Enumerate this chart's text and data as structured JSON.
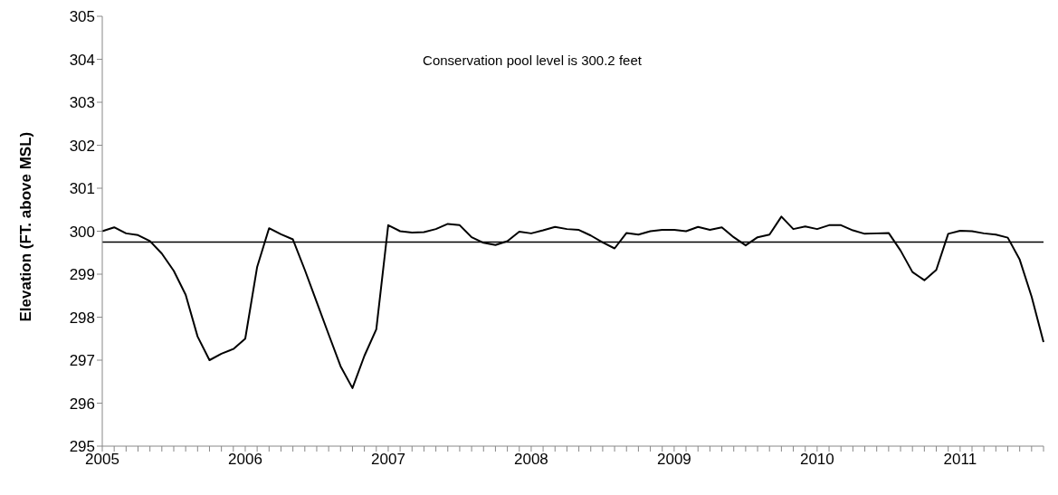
{
  "chart_data": {
    "type": "line",
    "ylabel": "Elevation (FT. above MSL)",
    "categories": [
      "2005",
      null,
      null,
      null,
      null,
      null,
      null,
      null,
      null,
      null,
      null,
      null,
      "2006",
      null,
      null,
      null,
      null,
      null,
      null,
      null,
      null,
      null,
      null,
      null,
      "2007",
      null,
      null,
      null,
      null,
      null,
      null,
      null,
      null,
      null,
      null,
      null,
      "2008",
      null,
      null,
      null,
      null,
      null,
      null,
      null,
      null,
      null,
      null,
      null,
      "2009",
      null,
      null,
      null,
      null,
      null,
      null,
      null,
      null,
      null,
      null,
      null,
      "2010",
      null,
      null,
      null,
      null,
      null,
      null,
      null,
      null,
      null,
      null,
      null,
      "2011",
      null,
      null,
      null,
      null,
      null,
      null,
      null
    ],
    "series": [
      {
        "color": "#000000",
        "values": [
          300.0,
          300.09,
          299.95,
          299.91,
          299.77,
          299.48,
          299.08,
          298.52,
          297.55,
          297.0,
          297.15,
          297.26,
          297.5,
          299.17,
          300.07,
          299.93,
          299.81,
          299.1,
          298.35,
          297.6,
          296.86,
          296.35,
          297.1,
          297.72,
          300.14,
          300.0,
          299.97,
          299.98,
          300.05,
          300.17,
          300.14,
          299.86,
          299.73,
          299.68,
          299.77,
          299.99,
          299.95,
          300.02,
          300.1,
          300.05,
          300.03,
          299.9,
          299.74,
          299.6,
          299.96,
          299.92,
          300.0,
          300.03,
          300.03,
          300.0,
          300.1,
          300.03,
          300.09,
          299.86,
          299.67,
          299.86,
          299.92,
          300.34,
          300.05,
          300.11,
          300.05,
          300.14,
          300.14,
          300.02,
          299.94,
          299.95,
          299.96,
          299.55,
          299.05,
          298.86,
          299.1,
          299.94,
          300.01,
          300.0,
          299.95,
          299.92,
          299.85,
          299.34,
          298.48,
          297.42
        ]
      }
    ],
    "ylim": [
      295,
      305
    ],
    "yticks": [
      295,
      296,
      297,
      298,
      299,
      300,
      301,
      302,
      303,
      304,
      305
    ],
    "marker": "none",
    "line_style": "solid",
    "ref_lines": [
      {
        "axis": "y",
        "value": 299.75,
        "color": "#000000"
      }
    ],
    "annotations": [
      "Conservation pool level is 300.2 feet"
    ]
  }
}
